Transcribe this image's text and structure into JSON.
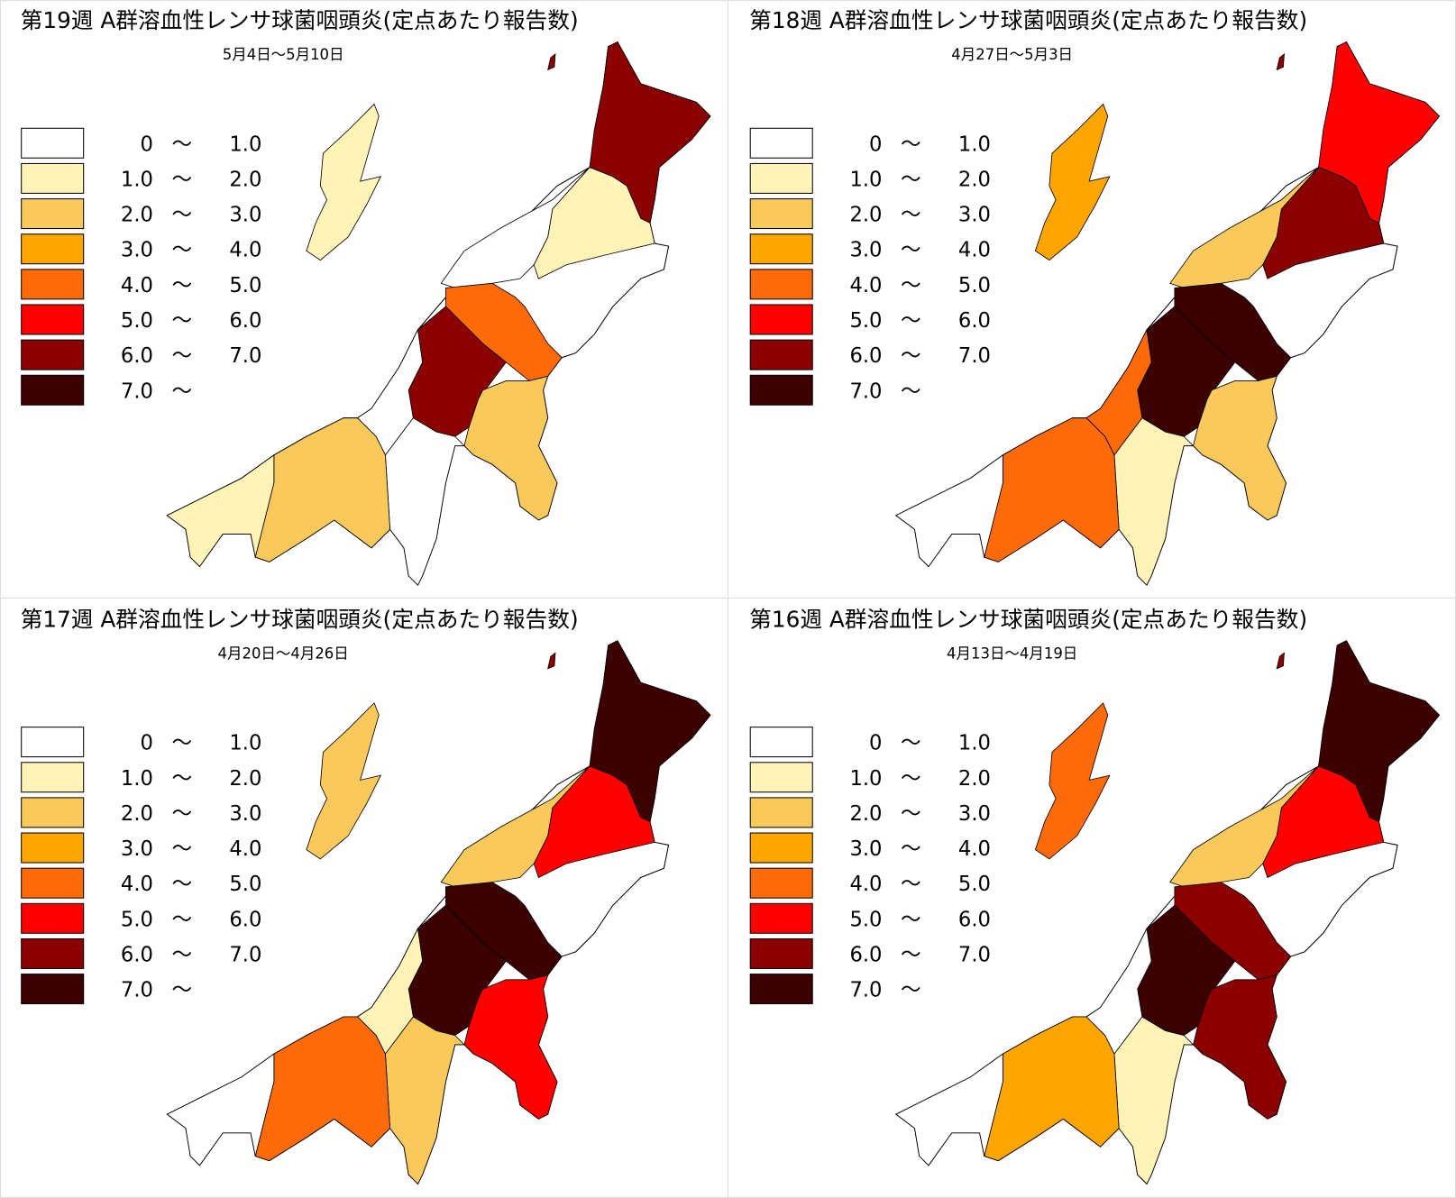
{
  "legend": [
    {
      "color": "#ffffff",
      "from": "0",
      "sep": "〜",
      "to": "1.0"
    },
    {
      "color": "#fff3b8",
      "from": "1.0",
      "sep": "〜",
      "to": "2.0"
    },
    {
      "color": "#f9c95b",
      "from": "2.0",
      "sep": "〜",
      "to": "3.0"
    },
    {
      "color": "#ffa500",
      "from": "3.0",
      "sep": "〜",
      "to": "4.0"
    },
    {
      "color": "#ff6a0a",
      "from": "4.0",
      "sep": "〜",
      "to": "5.0"
    },
    {
      "color": "#ff0000",
      "from": "5.0",
      "sep": "〜",
      "to": "6.0"
    },
    {
      "color": "#8b0000",
      "from": "6.0",
      "sep": "〜",
      "to": "7.0"
    },
    {
      "color": "#3c0000",
      "from": "7.0",
      "sep": "〜"
    }
  ],
  "panels": [
    {
      "title": "第19週 A群溶血性レンサ球菌咽頭炎(定点あたり報告数)",
      "date": "5月4日～5月10日",
      "region_colors": [
        "#8b0000",
        "#fff3b8",
        "#ffffff",
        "#ff6a0a",
        "#8b0000",
        "#f9c95b",
        "#ffffff",
        "#ffffff",
        "#f9c95b",
        "#fff3b8",
        "#fff3b8",
        "#8b0000"
      ]
    },
    {
      "title": "第18週 A群溶血性レンサ球菌咽頭炎(定点あたり報告数)",
      "date": "4月27日～5月3日",
      "region_colors": [
        "#ff0000",
        "#8b0000",
        "#f9c95b",
        "#3c0000",
        "#3c0000",
        "#f9c95b",
        "#ff6a0a",
        "#fff3b8",
        "#ff6a0a",
        "#ffffff",
        "#ffa500",
        "#8b0000"
      ]
    },
    {
      "title": "第17週 A群溶血性レンサ球菌咽頭炎(定点あたり報告数)",
      "date": "4月20日～4月26日",
      "region_colors": [
        "#3c0000",
        "#ff0000",
        "#f9c95b",
        "#3c0000",
        "#3c0000",
        "#ff0000",
        "#fff3b8",
        "#f9c95b",
        "#ff6a0a",
        "#ffffff",
        "#f9c95b",
        "#8b0000"
      ]
    },
    {
      "title": "第16週 A群溶血性レンサ球菌咽頭炎(定点あたり報告数)",
      "date": "4月13日～4月19日",
      "region_colors": [
        "#3c0000",
        "#ff0000",
        "#f9c95b",
        "#8b0000",
        "#3c0000",
        "#8b0000",
        "#ffffff",
        "#fff3b8",
        "#ffa500",
        "#ffffff",
        "#ff6a0a",
        "#8b0000"
      ]
    }
  ]
}
